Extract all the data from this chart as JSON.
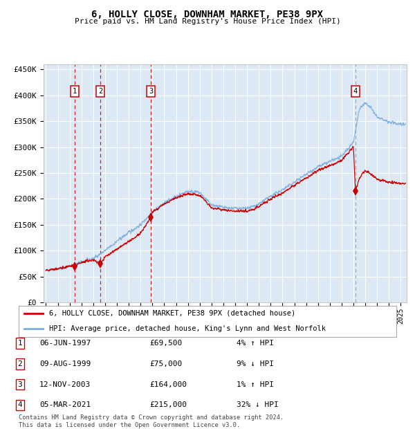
{
  "title1": "6, HOLLY CLOSE, DOWNHAM MARKET, PE38 9PX",
  "title2": "Price paid vs. HM Land Registry's House Price Index (HPI)",
  "ylabel_ticks": [
    "£0",
    "£50K",
    "£100K",
    "£150K",
    "£200K",
    "£250K",
    "£300K",
    "£350K",
    "£400K",
    "£450K"
  ],
  "ytick_values": [
    0,
    50000,
    100000,
    150000,
    200000,
    250000,
    300000,
    350000,
    400000,
    450000
  ],
  "ylim": [
    0,
    460000
  ],
  "xlim_start": 1994.8,
  "xlim_end": 2025.5,
  "sale_dates": [
    1997.43,
    1999.6,
    2003.87,
    2021.17
  ],
  "sale_prices": [
    69500,
    75000,
    164000,
    215000
  ],
  "sale_labels": [
    "1",
    "2",
    "3",
    "4"
  ],
  "background_color": "#dce9f5",
  "grid_color": "#ffffff",
  "hpi_line_color": "#7aacdb",
  "sale_line_color": "#cc0000",
  "sale_marker_color": "#cc0000",
  "legend_entries": [
    "6, HOLLY CLOSE, DOWNHAM MARKET, PE38 9PX (detached house)",
    "HPI: Average price, detached house, King's Lynn and West Norfolk"
  ],
  "table_data": [
    [
      "1",
      "06-JUN-1997",
      "£69,500",
      "4% ↑ HPI"
    ],
    [
      "2",
      "09-AUG-1999",
      "£75,000",
      "9% ↓ HPI"
    ],
    [
      "3",
      "12-NOV-2003",
      "£164,000",
      "1% ↑ HPI"
    ],
    [
      "4",
      "05-MAR-2021",
      "£215,000",
      "32% ↓ HPI"
    ]
  ],
  "footer": "Contains HM Land Registry data © Crown copyright and database right 2024.\nThis data is licensed under the Open Government Licence v3.0.",
  "hpi_key_years": [
    1995,
    1996,
    1997,
    1998,
    1999,
    2000,
    2001,
    2002,
    2003,
    2004,
    2005,
    2006,
    2007,
    2008,
    2009,
    2010,
    2011,
    2012,
    2013,
    2014,
    2015,
    2016,
    2017,
    2018,
    2019,
    2020,
    2021,
    2021.5,
    2022,
    2022.5,
    2023,
    2024,
    2025
  ],
  "hpi_key_vals": [
    62000,
    65000,
    70000,
    78000,
    85000,
    100000,
    118000,
    135000,
    150000,
    175000,
    192000,
    205000,
    215000,
    212000,
    188000,
    183000,
    182000,
    181000,
    190000,
    205000,
    218000,
    232000,
    248000,
    262000,
    272000,
    282000,
    310000,
    375000,
    385000,
    375000,
    358000,
    348000,
    345000
  ],
  "sale_key_years": [
    1995,
    1996,
    1997,
    1997.43,
    1998,
    1999,
    1999.6,
    2000,
    2001,
    2002,
    2003,
    2003.87,
    2004,
    2005,
    2006,
    2007,
    2008,
    2009,
    2010,
    2011,
    2012,
    2013,
    2014,
    2015,
    2016,
    2017,
    2018,
    2019,
    2020,
    2021,
    2021.17,
    2021.5,
    2022,
    2022.5,
    2023,
    2024,
    2025
  ],
  "sale_key_vals": [
    62000,
    65000,
    70000,
    69500,
    78000,
    82000,
    75000,
    88000,
    103000,
    118000,
    133000,
    164000,
    175000,
    190000,
    202000,
    210000,
    207000,
    183000,
    178000,
    177000,
    176000,
    185000,
    200000,
    212000,
    226000,
    241000,
    255000,
    264000,
    274000,
    302000,
    215000,
    240000,
    255000,
    248000,
    238000,
    232000,
    230000
  ]
}
